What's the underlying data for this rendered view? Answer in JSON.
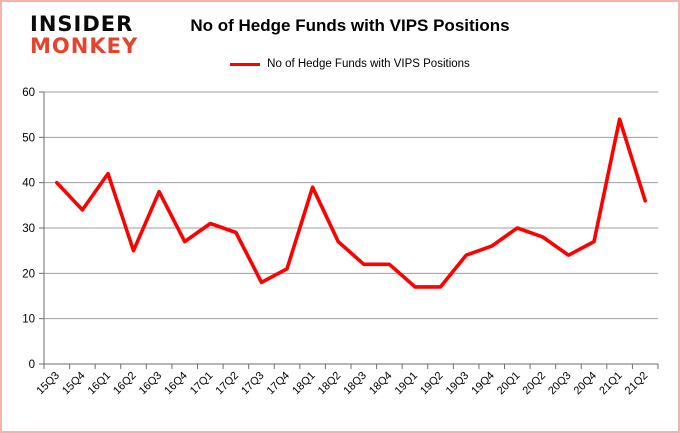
{
  "logo": {
    "line1": "INSIDER",
    "line2": "MONKEY"
  },
  "header": {
    "title": "No of Hedge Funds with VIPS Positions"
  },
  "legend": {
    "label": "No of Hedge Funds with VIPS Positions"
  },
  "colors": {
    "series": "#ff0000",
    "logo_text": "#0b0b0b",
    "logo_accent": "#e2442d",
    "grid": "#9d9d9d",
    "axis": "#6e6e6e",
    "frame": "#f2b3ab",
    "text": "#000000"
  },
  "chart_data": {
    "type": "line",
    "title": "No of Hedge Funds with VIPS Positions",
    "categories": [
      "15Q3",
      "15Q4",
      "16Q1",
      "16Q2",
      "16Q3",
      "16Q4",
      "17Q1",
      "17Q2",
      "17Q3",
      "17Q4",
      "18Q1",
      "18Q2",
      "18Q3",
      "18Q4",
      "19Q1",
      "19Q2",
      "19Q3",
      "19Q4",
      "20Q1",
      "20Q2",
      "20Q3",
      "20Q4",
      "21Q1",
      "21Q2"
    ],
    "series": [
      {
        "name": "No of Hedge Funds with VIPS Positions",
        "values": [
          40,
          34,
          42,
          25,
          38,
          27,
          31,
          29,
          18,
          21,
          39,
          27,
          22,
          22,
          17,
          17,
          24,
          26,
          30,
          28,
          24,
          27,
          54,
          36
        ]
      }
    ],
    "ylim": [
      0,
      60
    ],
    "ytick_step": 10,
    "grid": "horizontal",
    "legend_position": "top"
  }
}
